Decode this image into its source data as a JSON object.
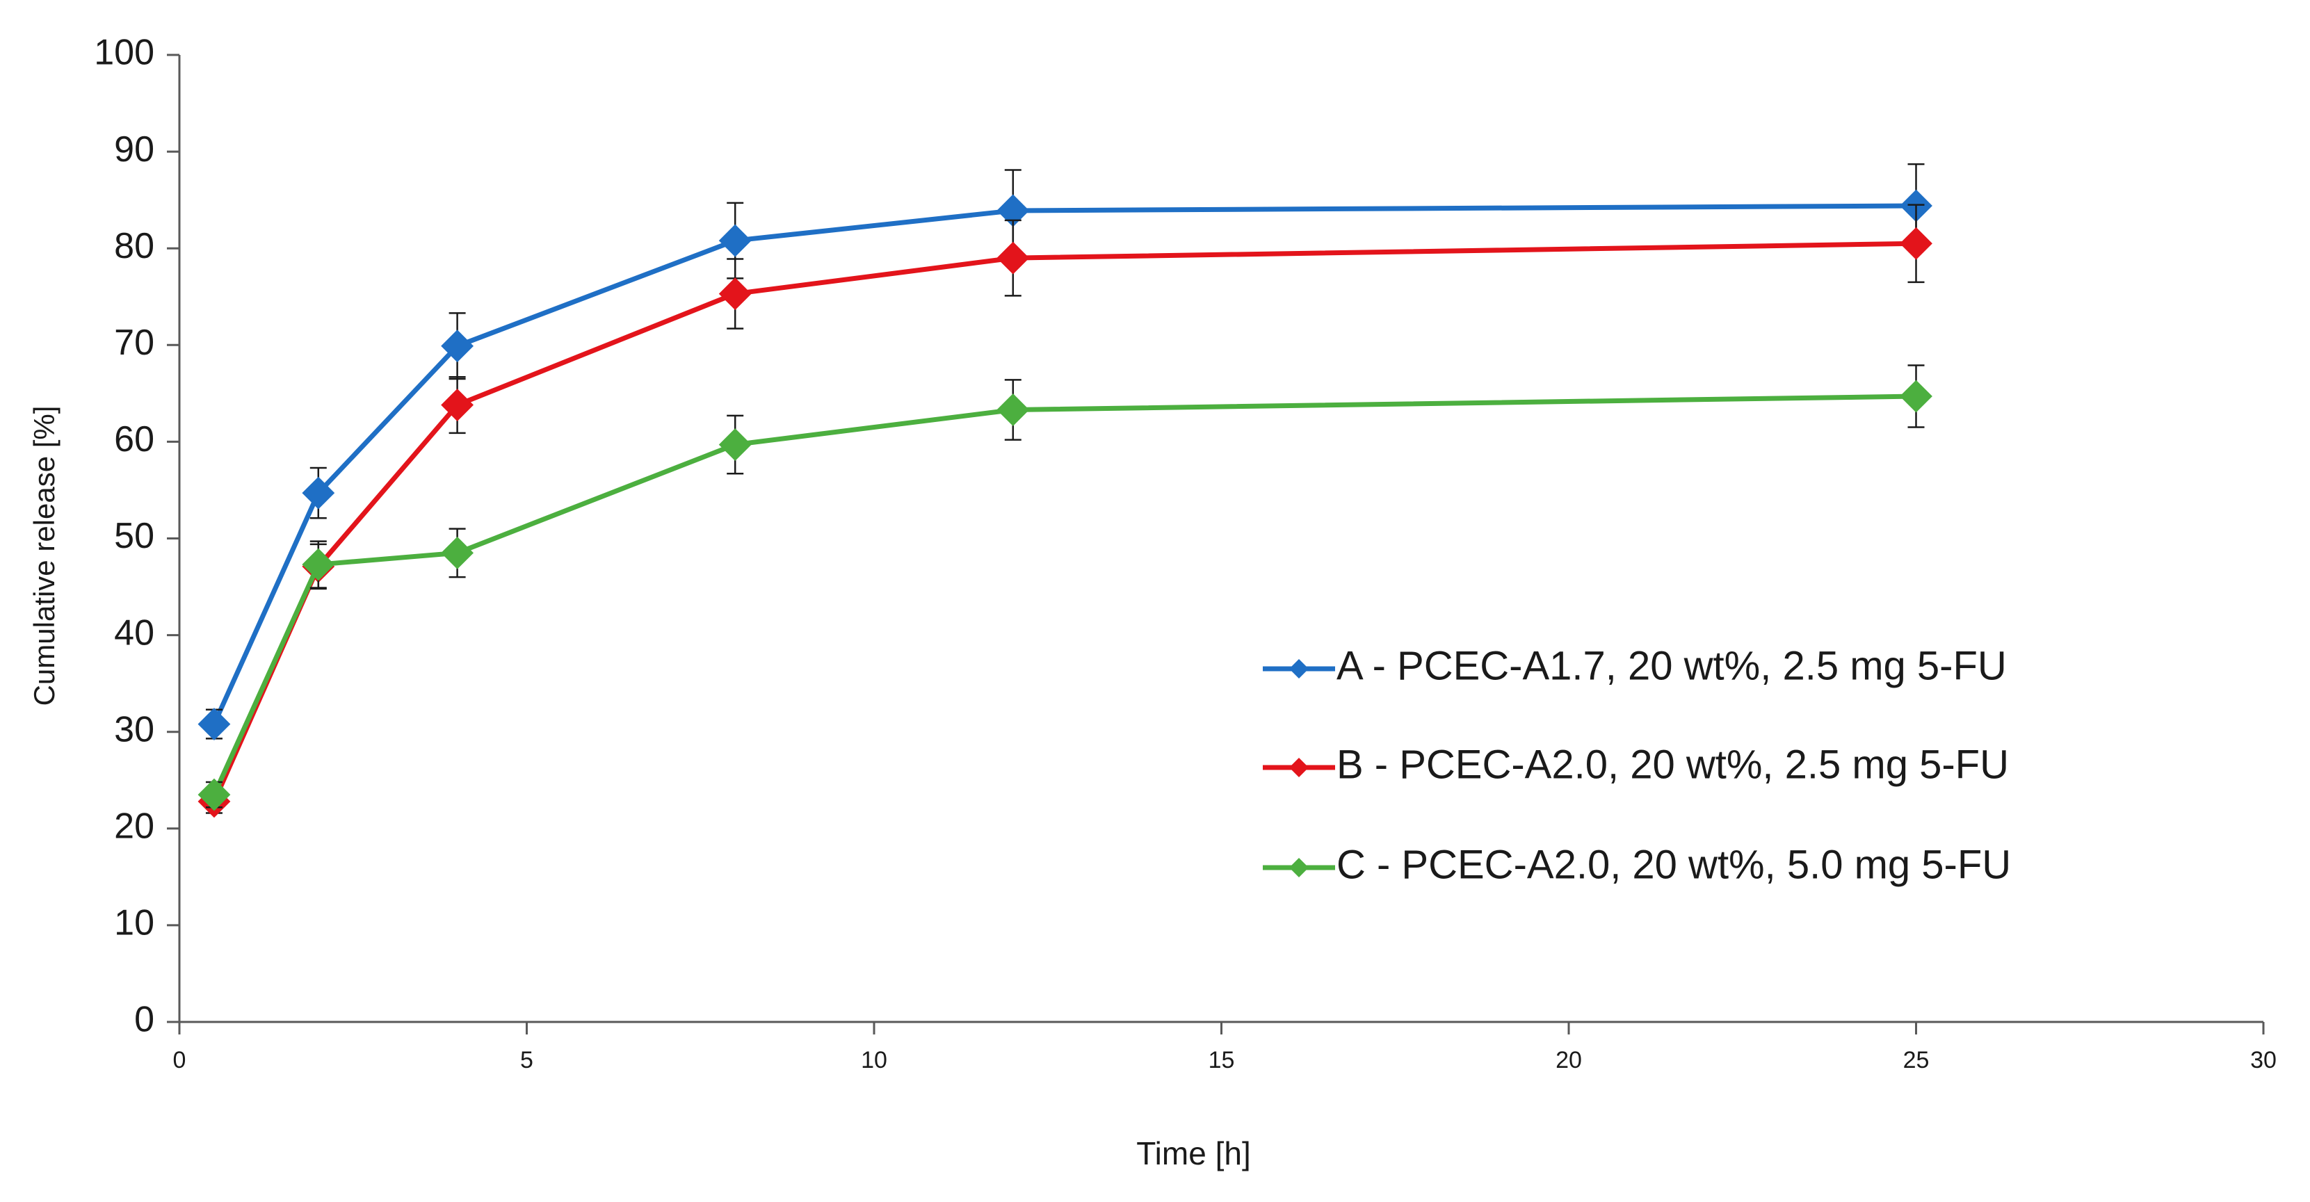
{
  "chart_data": {
    "type": "line",
    "title": "",
    "xlabel": "Time [h]",
    "ylabel": "Cumulative release [%]",
    "xlim": [
      0,
      30
    ],
    "ylim": [
      0,
      100
    ],
    "x_ticks": [
      "0",
      "5",
      "10",
      "15",
      "20",
      "25",
      "30"
    ],
    "y_ticks": [
      "0",
      "10",
      "20",
      "30",
      "40",
      "50",
      "60",
      "70",
      "80",
      "90",
      "100"
    ],
    "grid": false,
    "legend_position": "right-center",
    "x": [
      0.5,
      2,
      4,
      8,
      12,
      25
    ],
    "series": [
      {
        "name": "A - PCEC-A1.7, 20 wt%, 2.5 mg 5-FU",
        "color": "#1f6fc5",
        "values": [
          30.8,
          54.7,
          69.9,
          80.8,
          83.9,
          84.4
        ],
        "errors": [
          1.5,
          2.6,
          3.4,
          3.9,
          4.2,
          4.3
        ]
      },
      {
        "name": "B - PCEC-A2.0, 20 wt%, 2.5 mg 5-FU",
        "color": "#e3141b",
        "values": [
          22.8,
          47.1,
          63.8,
          75.3,
          79.0,
          80.5
        ],
        "errors": [
          1.2,
          2.3,
          2.9,
          3.6,
          3.9,
          4.0
        ]
      },
      {
        "name": "C - PCEC-A2.0, 20 wt%, 5.0 mg 5-FU",
        "color": "#4caf3f",
        "values": [
          23.5,
          47.3,
          48.5,
          59.7,
          63.3,
          64.7
        ],
        "errors": [
          1.3,
          2.4,
          2.5,
          3.0,
          3.1,
          3.2
        ]
      }
    ]
  }
}
